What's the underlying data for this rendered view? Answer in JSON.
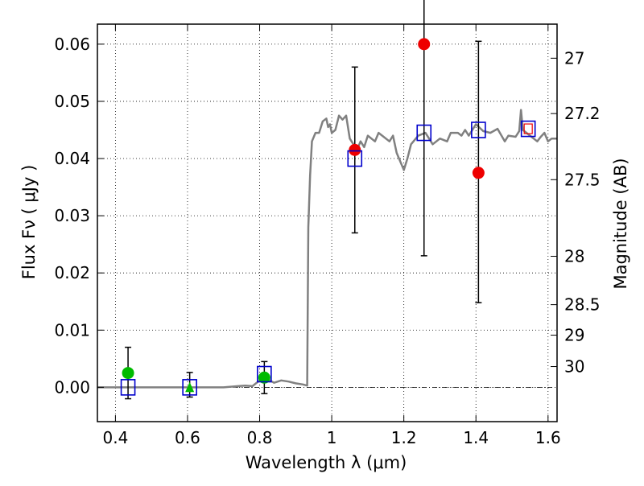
{
  "chart_data": {
    "type": "scatter",
    "xlabel": "Wavelength  λ (μm)",
    "ylabel": "Flux  Fν  ( μJy )",
    "ylabel_right": "Magnitude (AB)",
    "xlim": [
      0.35,
      1.625
    ],
    "ylim": [
      -0.006,
      0.0635
    ],
    "grid": true,
    "x_ticks": [
      {
        "v": 0.4,
        "label": "0.4"
      },
      {
        "v": 0.6,
        "label": "0.6"
      },
      {
        "v": 0.8,
        "label": "0.8"
      },
      {
        "v": 1.0,
        "label": "1"
      },
      {
        "v": 1.2,
        "label": "1.2"
      },
      {
        "v": 1.4,
        "label": "1.4"
      },
      {
        "v": 1.6,
        "label": "1.6"
      }
    ],
    "y_ticks": [
      {
        "v": 0.0,
        "label": "0.00"
      },
      {
        "v": 0.01,
        "label": "0.01"
      },
      {
        "v": 0.02,
        "label": "0.02"
      },
      {
        "v": 0.03,
        "label": "0.03"
      },
      {
        "v": 0.04,
        "label": "0.04"
      },
      {
        "v": 0.05,
        "label": "0.05"
      },
      {
        "v": 0.06,
        "label": "0.06"
      }
    ],
    "mag_ticks": [
      {
        "mag": 27,
        "label": "27"
      },
      {
        "mag": 27.2,
        "label": "27.2"
      },
      {
        "mag": 27.5,
        "label": "27.5"
      },
      {
        "mag": 28,
        "label": "28"
      },
      {
        "mag": 28.5,
        "label": "28.5"
      },
      {
        "mag": 29,
        "label": "29"
      },
      {
        "mag": 30,
        "label": "30"
      }
    ],
    "model_spectrum": {
      "color": "#808080",
      "points": [
        [
          0.35,
          0.0
        ],
        [
          0.5,
          0.0
        ],
        [
          0.7,
          0.0
        ],
        [
          0.74,
          0.0002
        ],
        [
          0.76,
          0.0003
        ],
        [
          0.78,
          0.0002
        ],
        [
          0.8,
          0.0012
        ],
        [
          0.82,
          0.0015
        ],
        [
          0.84,
          0.0008
        ],
        [
          0.86,
          0.0012
        ],
        [
          0.88,
          0.001
        ],
        [
          0.9,
          0.0007
        ],
        [
          0.92,
          0.0005
        ],
        [
          0.932,
          0.0003
        ],
        [
          0.935,
          0.028
        ],
        [
          0.94,
          0.037
        ],
        [
          0.945,
          0.043
        ],
        [
          0.955,
          0.0445
        ],
        [
          0.965,
          0.0445
        ],
        [
          0.975,
          0.0465
        ],
        [
          0.985,
          0.047
        ],
        [
          0.99,
          0.0455
        ],
        [
          0.995,
          0.046
        ],
        [
          1.0,
          0.0445
        ],
        [
          1.01,
          0.045
        ],
        [
          1.02,
          0.0475
        ],
        [
          1.03,
          0.0468
        ],
        [
          1.04,
          0.0475
        ],
        [
          1.05,
          0.0435
        ],
        [
          1.06,
          0.0425
        ],
        [
          1.07,
          0.0415
        ],
        [
          1.08,
          0.043
        ],
        [
          1.09,
          0.042
        ],
        [
          1.1,
          0.044
        ],
        [
          1.12,
          0.043
        ],
        [
          1.13,
          0.0445
        ],
        [
          1.14,
          0.044
        ],
        [
          1.16,
          0.043
        ],
        [
          1.17,
          0.044
        ],
        [
          1.18,
          0.041
        ],
        [
          1.19,
          0.0395
        ],
        [
          1.2,
          0.038
        ],
        [
          1.21,
          0.04
        ],
        [
          1.22,
          0.0425
        ],
        [
          1.24,
          0.044
        ],
        [
          1.26,
          0.0445
        ],
        [
          1.28,
          0.0425
        ],
        [
          1.3,
          0.0435
        ],
        [
          1.32,
          0.043
        ],
        [
          1.33,
          0.0445
        ],
        [
          1.35,
          0.0445
        ],
        [
          1.36,
          0.044
        ],
        [
          1.37,
          0.045
        ],
        [
          1.38,
          0.044
        ],
        [
          1.39,
          0.045
        ],
        [
          1.4,
          0.046
        ],
        [
          1.42,
          0.0448
        ],
        [
          1.44,
          0.0445
        ],
        [
          1.46,
          0.0452
        ],
        [
          1.48,
          0.043
        ],
        [
          1.49,
          0.044
        ],
        [
          1.51,
          0.0438
        ],
        [
          1.52,
          0.0448
        ],
        [
          1.525,
          0.0485
        ],
        [
          1.53,
          0.045
        ],
        [
          1.55,
          0.044
        ],
        [
          1.57,
          0.043
        ],
        [
          1.58,
          0.0438
        ],
        [
          1.59,
          0.0445
        ],
        [
          1.6,
          0.043
        ],
        [
          1.61,
          0.0435
        ],
        [
          1.625,
          0.0435
        ]
      ]
    },
    "series": [
      {
        "marker": "circle",
        "color": "#00bb00",
        "points": [
          {
            "x": 0.435,
            "y": 0.0025,
            "err": [
              0.0045,
              0.0045
            ]
          },
          {
            "x": 0.813,
            "y": 0.0017,
            "err": [
              0.0028,
              0.0028
            ]
          }
        ]
      },
      {
        "marker": "triangle",
        "color": "#00bb00",
        "points": [
          {
            "x": 0.606,
            "y": -0.0002,
            "err": [
              0.0015,
              0.0028
            ]
          }
        ]
      },
      {
        "marker": "circle",
        "color": "#ee0000",
        "points": [
          {
            "x": 1.064,
            "y": 0.0415,
            "err": [
              0.0145,
              0.0145
            ]
          },
          {
            "x": 1.256,
            "y": 0.06,
            "err": [
              0.037,
              0.035
            ]
          },
          {
            "x": 1.407,
            "y": 0.0375,
            "err": [
              0.0227,
              0.023
            ]
          }
        ]
      },
      {
        "marker": "square",
        "color": "#0000cc",
        "points": [
          {
            "x": 0.435,
            "y": 0.0
          },
          {
            "x": 0.606,
            "y": 0.0
          },
          {
            "x": 0.813,
            "y": 0.0023
          },
          {
            "x": 1.064,
            "y": 0.04
          },
          {
            "x": 1.256,
            "y": 0.0445
          },
          {
            "x": 1.407,
            "y": 0.045
          },
          {
            "x": 1.545,
            "y": 0.0452
          }
        ]
      },
      {
        "marker": "small-square",
        "color": "#ee0000",
        "points": [
          {
            "x": 1.545,
            "y": 0.0452
          }
        ]
      }
    ]
  }
}
